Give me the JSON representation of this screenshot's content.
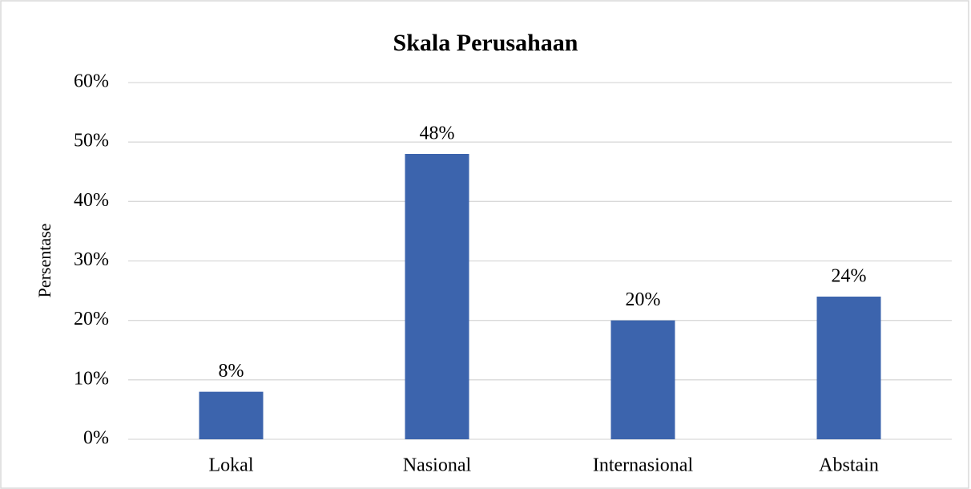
{
  "chart_data": {
    "type": "bar",
    "title": "Skala Perusahaan",
    "ylabel": "Persentase",
    "categories": [
      "Lokal",
      "Nasional",
      "Internasional",
      "Abstain"
    ],
    "values": [
      8,
      48,
      20,
      24
    ],
    "value_labels": [
      "8%",
      "48%",
      "20%",
      "24%"
    ],
    "color": "#3c64ad",
    "ylim": [
      0,
      60
    ],
    "yticks": [
      {
        "value": 0,
        "label": "0%"
      },
      {
        "value": 10,
        "label": "10%"
      },
      {
        "value": 20,
        "label": "20%"
      },
      {
        "value": 30,
        "label": "30%"
      },
      {
        "value": 40,
        "label": "40%"
      },
      {
        "value": 50,
        "label": "50%"
      },
      {
        "value": 60,
        "label": "60%"
      }
    ],
    "grid": true
  }
}
